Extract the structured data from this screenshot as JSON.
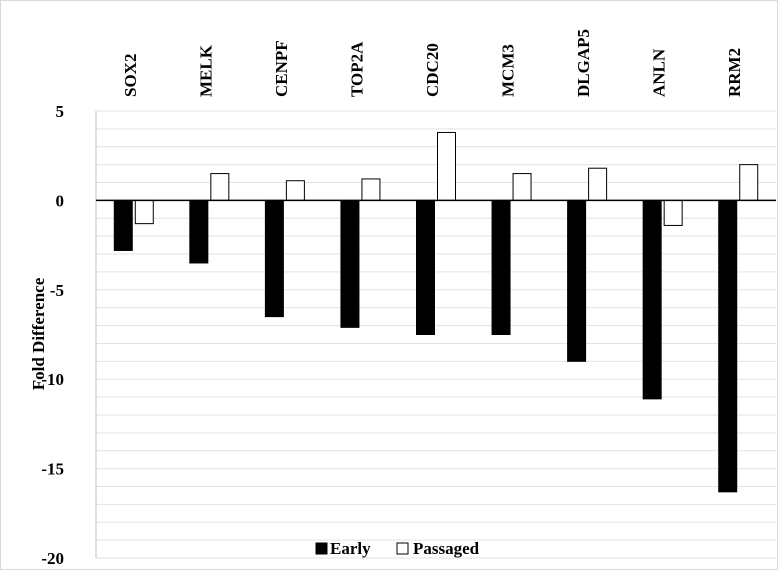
{
  "chart_data": {
    "type": "bar",
    "categories": [
      "SOX2",
      "MELK",
      "CENPF",
      "TOP2A",
      "CDC20",
      "MCM3",
      "DLGAP5",
      "ANLN",
      "RRM2"
    ],
    "series": [
      {
        "name": "Early",
        "values": [
          -2.8,
          -3.5,
          -6.5,
          -7.1,
          -7.5,
          -7.5,
          -9.0,
          -11.1,
          -16.3
        ],
        "color": "#000000"
      },
      {
        "name": "Passaged",
        "values": [
          -1.3,
          1.5,
          1.1,
          1.2,
          3.8,
          1.5,
          1.8,
          -1.4,
          2.0
        ],
        "color": "#ffffff"
      }
    ],
    "title": "",
    "xlabel": "",
    "ylabel": "Fold Difference",
    "ylim": [
      -20,
      5
    ],
    "yticks": [
      5,
      0,
      -5,
      -10,
      -15,
      -20
    ],
    "minor_grid_step": 1,
    "grid": true,
    "category_label_position": "top",
    "legend_position": "bottom"
  }
}
